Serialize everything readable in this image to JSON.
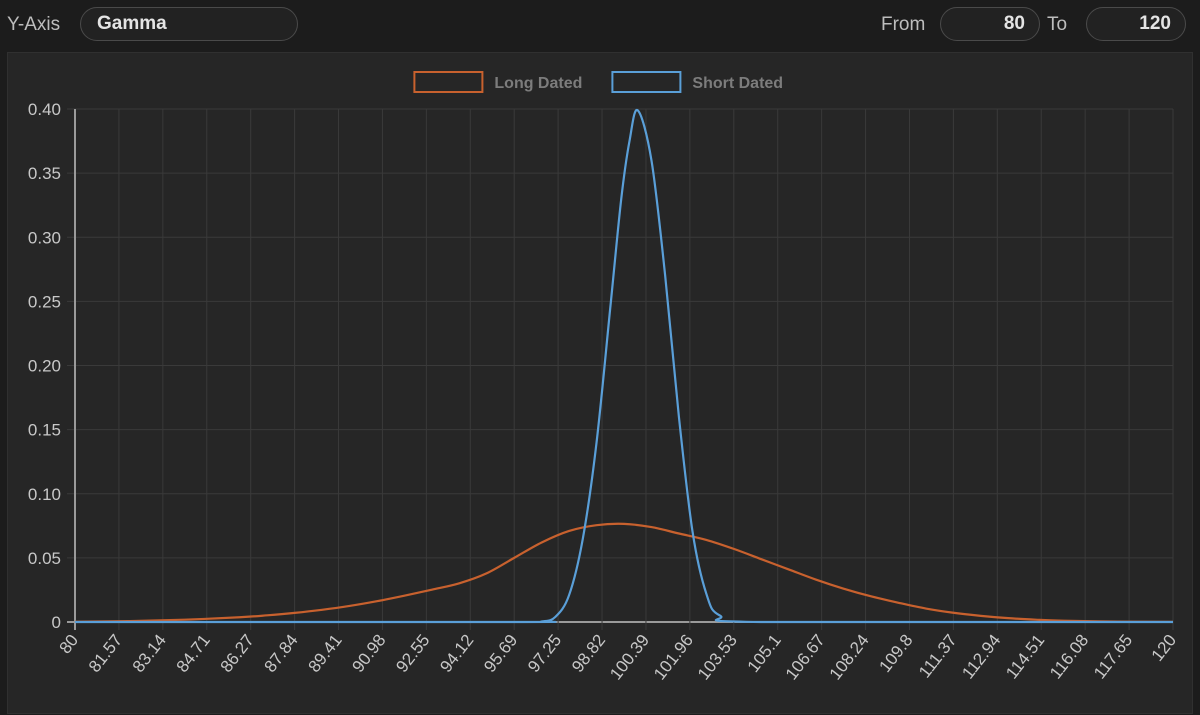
{
  "toolbar": {
    "y_axis_label": "Y-Axis",
    "y_axis_value": "Gamma",
    "from_label": "From",
    "from_value": "80",
    "to_label": "To",
    "to_value": "120"
  },
  "colors": {
    "long_dated": "#c8612e",
    "short_dated": "#5a9fd8",
    "grid": "#3a3a3a",
    "background": "#262626"
  },
  "chart_data": {
    "type": "line",
    "title": "",
    "xlabel": "",
    "ylabel": "",
    "x_tick_labels": [
      "80",
      "81.57",
      "83.14",
      "84.71",
      "86.27",
      "87.84",
      "89.41",
      "90.98",
      "92.55",
      "94.12",
      "95.69",
      "97.25",
      "98.82",
      "100.39",
      "101.96",
      "103.53",
      "105.1",
      "106.67",
      "108.24",
      "109.8",
      "111.37",
      "112.94",
      "114.51",
      "116.08",
      "117.65",
      "120"
    ],
    "y_tick_labels": [
      "0",
      "0.05",
      "0.10",
      "0.15",
      "0.20",
      "0.25",
      "0.30",
      "0.35",
      "0.40"
    ],
    "xlim": [
      80,
      120
    ],
    "ylim": [
      0,
      0.4
    ],
    "grid": true,
    "legend_position": "top-center",
    "series": [
      {
        "name": "Long Dated",
        "color": "#c8612e",
        "x": [
          80,
          82,
          84,
          86,
          87,
          88,
          89,
          90,
          91,
          92,
          93,
          94,
          95,
          96,
          97,
          98,
          99,
          100,
          101,
          102,
          103,
          104,
          105,
          106,
          107,
          108,
          109,
          110,
          111,
          112,
          113,
          114,
          115,
          116,
          118,
          120
        ],
        "y": [
          0.0002,
          0.0007,
          0.0018,
          0.0037,
          0.0052,
          0.0071,
          0.0095,
          0.0125,
          0.0162,
          0.0205,
          0.0252,
          0.0302,
          0.038,
          0.05,
          0.062,
          0.071,
          0.0755,
          0.0765,
          0.074,
          0.069,
          0.064,
          0.057,
          0.049,
          0.041,
          0.033,
          0.026,
          0.02,
          0.015,
          0.0105,
          0.0072,
          0.0048,
          0.003,
          0.0018,
          0.001,
          0.0003,
          0.0001
        ]
      },
      {
        "name": "Short Dated",
        "color": "#5a9fd8",
        "x": [
          80,
          96,
          97,
          97.5,
          98,
          98.5,
          99,
          99.5,
          99.9,
          100.2,
          100.5,
          101,
          101.5,
          102,
          102.5,
          103,
          103.5,
          105,
          120
        ],
        "y": [
          0,
          0,
          0.0004,
          0.004,
          0.021,
          0.065,
          0.14,
          0.245,
          0.33,
          0.375,
          0.399,
          0.36,
          0.27,
          0.16,
          0.07,
          0.022,
          0.005,
          0,
          0
        ]
      }
    ]
  }
}
